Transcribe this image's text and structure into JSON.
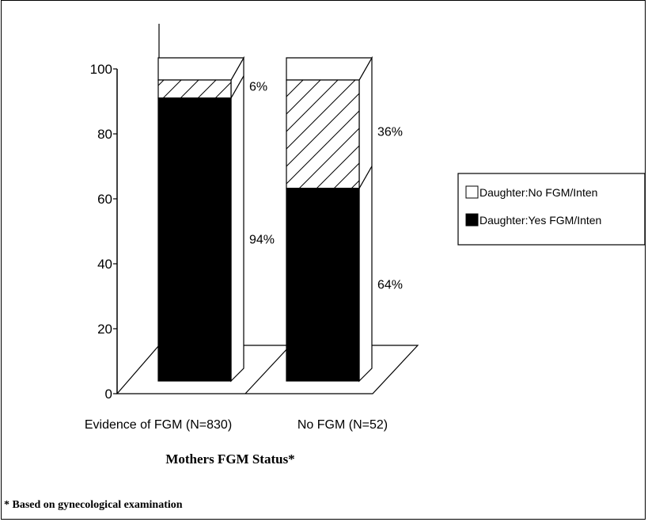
{
  "chart_data": {
    "type": "bar",
    "stacked": true,
    "three_d": true,
    "categories": [
      "Evidence of FGM (N=830)",
      "No FGM (N=52)"
    ],
    "series": [
      {
        "name": "Daughter:Yes FGM/Inten",
        "values": [
          94,
          64
        ],
        "labels": [
          "94%",
          "64%"
        ],
        "fill": "solid-black"
      },
      {
        "name": "Daughter:No FGM/Inten",
        "values": [
          6,
          36
        ],
        "labels": [
          "6%",
          "36%"
        ],
        "fill": "hatched-white"
      }
    ],
    "xlabel": "Mothers FGM Status*",
    "ylabel": "",
    "ylim": [
      0,
      100
    ],
    "yticks": [
      "0",
      "20",
      "40",
      "60",
      "80",
      "100"
    ],
    "legend_position": "right",
    "grid": false
  },
  "footnote": "* Based on gynecological examination",
  "colors": {
    "foreground": "#000000",
    "background": "#ffffff"
  }
}
